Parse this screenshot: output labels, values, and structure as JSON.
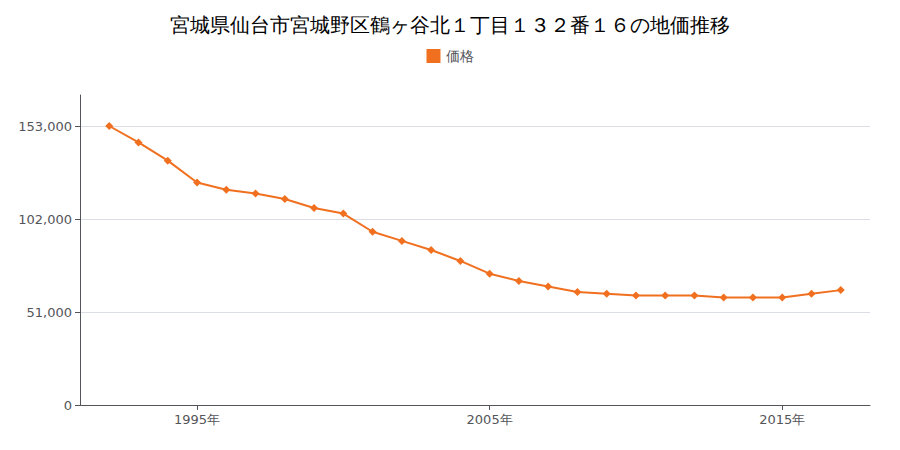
{
  "chart_data": {
    "type": "line",
    "title": "宮城県仙台市宮城野区鶴ヶ谷北１丁目１３２番１６の地価推移",
    "x": [
      1992,
      1993,
      1994,
      1995,
      1996,
      1997,
      1998,
      1999,
      2000,
      2001,
      2002,
      2003,
      2004,
      2005,
      2006,
      2007,
      2008,
      2009,
      2010,
      2011,
      2012,
      2013,
      2014,
      2015,
      2016,
      2017
    ],
    "series": [
      {
        "name": "価格",
        "color": "#f07020",
        "marker": "diamond",
        "values": [
          153000,
          144000,
          134000,
          122000,
          118000,
          116000,
          113000,
          108000,
          105000,
          95000,
          90000,
          85000,
          79000,
          72000,
          68000,
          65000,
          62000,
          61000,
          60000,
          60000,
          60000,
          59000,
          59000,
          59000,
          61000,
          63000
        ]
      }
    ],
    "xlim": [
      1991,
      2018
    ],
    "xticks": [
      {
        "value": 1995,
        "label": "1995年"
      },
      {
        "value": 2005,
        "label": "2005年"
      },
      {
        "value": 2015,
        "label": "2015年"
      }
    ],
    "ylim": [
      0,
      170000
    ],
    "yticks": [
      0,
      {
        "value": 51000,
        "label": "51,000"
      },
      {
        "value": 102000,
        "label": "102,000"
      },
      {
        "value": 153000,
        "label": "153,000"
      }
    ],
    "grid": true,
    "legend": "top"
  }
}
